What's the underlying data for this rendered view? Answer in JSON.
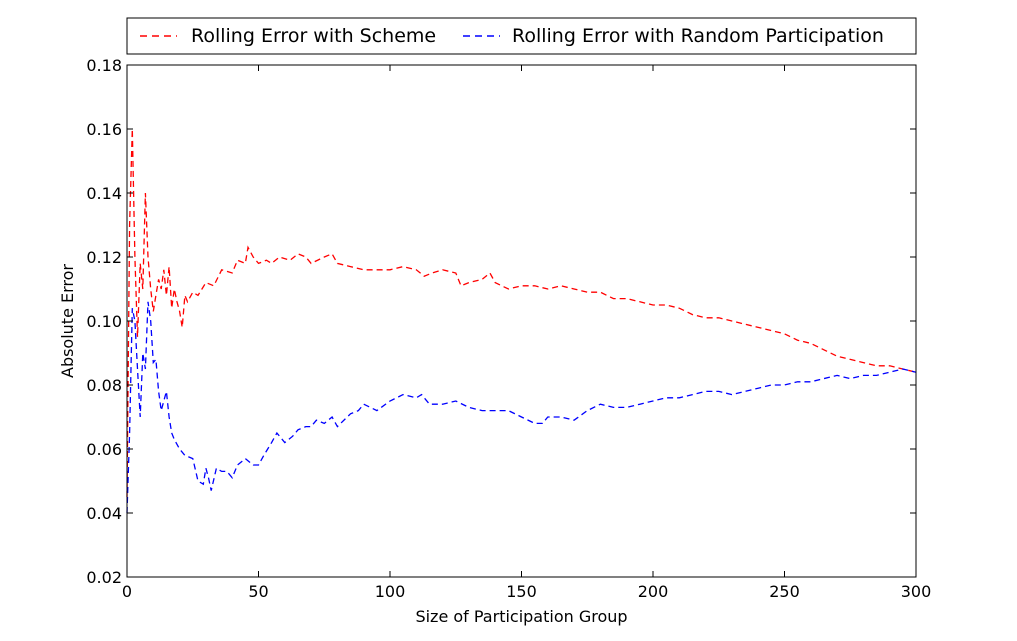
{
  "chart_data": {
    "type": "line",
    "title": "",
    "xlabel": "Size of Participation Group",
    "ylabel": "Absolute Error",
    "xlim": [
      0,
      300
    ],
    "ylim": [
      0.02,
      0.18
    ],
    "xticks": [
      0,
      50,
      100,
      150,
      200,
      250,
      300
    ],
    "xtick_labels": [
      "0",
      "50",
      "100",
      "150",
      "200",
      "250",
      "300"
    ],
    "yticks": [
      0.02,
      0.04,
      0.06,
      0.08,
      0.1,
      0.12,
      0.14,
      0.16,
      0.18
    ],
    "ytick_labels": [
      "0.02",
      "0.04",
      "0.06",
      "0.08",
      "0.10",
      "0.12",
      "0.14",
      "0.16",
      "0.18"
    ],
    "grid": false,
    "legend_position": "top-outside",
    "series": [
      {
        "name": "Rolling Error with Scheme",
        "color": "#ff0000",
        "linestyle": "dashed",
        "points": [
          [
            0,
            0.045
          ],
          [
            1,
            0.13
          ],
          [
            2,
            0.16
          ],
          [
            3,
            0.12
          ],
          [
            4,
            0.095
          ],
          [
            5,
            0.118
          ],
          [
            6,
            0.11
          ],
          [
            7,
            0.14
          ],
          [
            8,
            0.12
          ],
          [
            9,
            0.11
          ],
          [
            10,
            0.103
          ],
          [
            11,
            0.108
          ],
          [
            12,
            0.113
          ],
          [
            13,
            0.11
          ],
          [
            14,
            0.116
          ],
          [
            15,
            0.108
          ],
          [
            16,
            0.117
          ],
          [
            17,
            0.104
          ],
          [
            18,
            0.11
          ],
          [
            19,
            0.106
          ],
          [
            20,
            0.103
          ],
          [
            21,
            0.098
          ],
          [
            22,
            0.108
          ],
          [
            23,
            0.106
          ],
          [
            25,
            0.109
          ],
          [
            27,
            0.108
          ],
          [
            30,
            0.112
          ],
          [
            33,
            0.111
          ],
          [
            36,
            0.116
          ],
          [
            40,
            0.115
          ],
          [
            42,
            0.119
          ],
          [
            45,
            0.118
          ],
          [
            46,
            0.123
          ],
          [
            48,
            0.12
          ],
          [
            50,
            0.118
          ],
          [
            53,
            0.119
          ],
          [
            55,
            0.118
          ],
          [
            58,
            0.12
          ],
          [
            62,
            0.119
          ],
          [
            65,
            0.121
          ],
          [
            68,
            0.12
          ],
          [
            70,
            0.118
          ],
          [
            75,
            0.12
          ],
          [
            78,
            0.121
          ],
          [
            80,
            0.118
          ],
          [
            85,
            0.117
          ],
          [
            90,
            0.116
          ],
          [
            95,
            0.116
          ],
          [
            100,
            0.116
          ],
          [
            105,
            0.117
          ],
          [
            110,
            0.116
          ],
          [
            113,
            0.114
          ],
          [
            116,
            0.115
          ],
          [
            120,
            0.116
          ],
          [
            125,
            0.115
          ],
          [
            127,
            0.111
          ],
          [
            130,
            0.112
          ],
          [
            135,
            0.113
          ],
          [
            138,
            0.115
          ],
          [
            140,
            0.112
          ],
          [
            145,
            0.11
          ],
          [
            150,
            0.111
          ],
          [
            155,
            0.111
          ],
          [
            160,
            0.11
          ],
          [
            165,
            0.111
          ],
          [
            170,
            0.11
          ],
          [
            175,
            0.109
          ],
          [
            180,
            0.109
          ],
          [
            185,
            0.107
          ],
          [
            190,
            0.107
          ],
          [
            195,
            0.106
          ],
          [
            200,
            0.105
          ],
          [
            205,
            0.105
          ],
          [
            210,
            0.104
          ],
          [
            215,
            0.102
          ],
          [
            220,
            0.101
          ],
          [
            225,
            0.101
          ],
          [
            230,
            0.1
          ],
          [
            235,
            0.099
          ],
          [
            240,
            0.098
          ],
          [
            245,
            0.097
          ],
          [
            250,
            0.096
          ],
          [
            255,
            0.094
          ],
          [
            260,
            0.093
          ],
          [
            265,
            0.091
          ],
          [
            270,
            0.089
          ],
          [
            275,
            0.088
          ],
          [
            280,
            0.087
          ],
          [
            285,
            0.086
          ],
          [
            290,
            0.086
          ],
          [
            295,
            0.085
          ],
          [
            300,
            0.084
          ]
        ]
      },
      {
        "name": "Rolling Error with Random Participation",
        "color": "#0000ff",
        "linestyle": "dashed",
        "points": [
          [
            0,
            0.04
          ],
          [
            1,
            0.065
          ],
          [
            2,
            0.104
          ],
          [
            3,
            0.1
          ],
          [
            4,
            0.085
          ],
          [
            5,
            0.07
          ],
          [
            6,
            0.09
          ],
          [
            7,
            0.085
          ],
          [
            8,
            0.106
          ],
          [
            9,
            0.1
          ],
          [
            10,
            0.087
          ],
          [
            11,
            0.088
          ],
          [
            12,
            0.078
          ],
          [
            13,
            0.072
          ],
          [
            14,
            0.075
          ],
          [
            15,
            0.078
          ],
          [
            16,
            0.07
          ],
          [
            17,
            0.065
          ],
          [
            18,
            0.063
          ],
          [
            20,
            0.06
          ],
          [
            22,
            0.058
          ],
          [
            25,
            0.057
          ],
          [
            27,
            0.05
          ],
          [
            29,
            0.049
          ],
          [
            30,
            0.054
          ],
          [
            31,
            0.051
          ],
          [
            32,
            0.047
          ],
          [
            34,
            0.054
          ],
          [
            36,
            0.053
          ],
          [
            38,
            0.053
          ],
          [
            40,
            0.051
          ],
          [
            42,
            0.055
          ],
          [
            45,
            0.057
          ],
          [
            48,
            0.055
          ],
          [
            50,
            0.055
          ],
          [
            52,
            0.058
          ],
          [
            55,
            0.062
          ],
          [
            57,
            0.065
          ],
          [
            60,
            0.062
          ],
          [
            63,
            0.064
          ],
          [
            65,
            0.066
          ],
          [
            68,
            0.067
          ],
          [
            70,
            0.067
          ],
          [
            72,
            0.069
          ],
          [
            75,
            0.068
          ],
          [
            78,
            0.07
          ],
          [
            80,
            0.067
          ],
          [
            85,
            0.071
          ],
          [
            88,
            0.072
          ],
          [
            90,
            0.074
          ],
          [
            95,
            0.072
          ],
          [
            100,
            0.075
          ],
          [
            105,
            0.077
          ],
          [
            110,
            0.076
          ],
          [
            112,
            0.077
          ],
          [
            115,
            0.074
          ],
          [
            120,
            0.074
          ],
          [
            125,
            0.075
          ],
          [
            130,
            0.073
          ],
          [
            135,
            0.072
          ],
          [
            140,
            0.072
          ],
          [
            145,
            0.072
          ],
          [
            150,
            0.07
          ],
          [
            155,
            0.068
          ],
          [
            158,
            0.068
          ],
          [
            160,
            0.07
          ],
          [
            165,
            0.07
          ],
          [
            170,
            0.069
          ],
          [
            175,
            0.072
          ],
          [
            180,
            0.074
          ],
          [
            185,
            0.073
          ],
          [
            190,
            0.073
          ],
          [
            195,
            0.074
          ],
          [
            200,
            0.075
          ],
          [
            205,
            0.076
          ],
          [
            210,
            0.076
          ],
          [
            215,
            0.077
          ],
          [
            220,
            0.078
          ],
          [
            225,
            0.078
          ],
          [
            230,
            0.077
          ],
          [
            235,
            0.078
          ],
          [
            240,
            0.079
          ],
          [
            245,
            0.08
          ],
          [
            250,
            0.08
          ],
          [
            255,
            0.081
          ],
          [
            260,
            0.081
          ],
          [
            265,
            0.082
          ],
          [
            270,
            0.083
          ],
          [
            275,
            0.082
          ],
          [
            280,
            0.083
          ],
          [
            285,
            0.083
          ],
          [
            290,
            0.084
          ],
          [
            295,
            0.085
          ],
          [
            300,
            0.084
          ]
        ]
      }
    ]
  }
}
